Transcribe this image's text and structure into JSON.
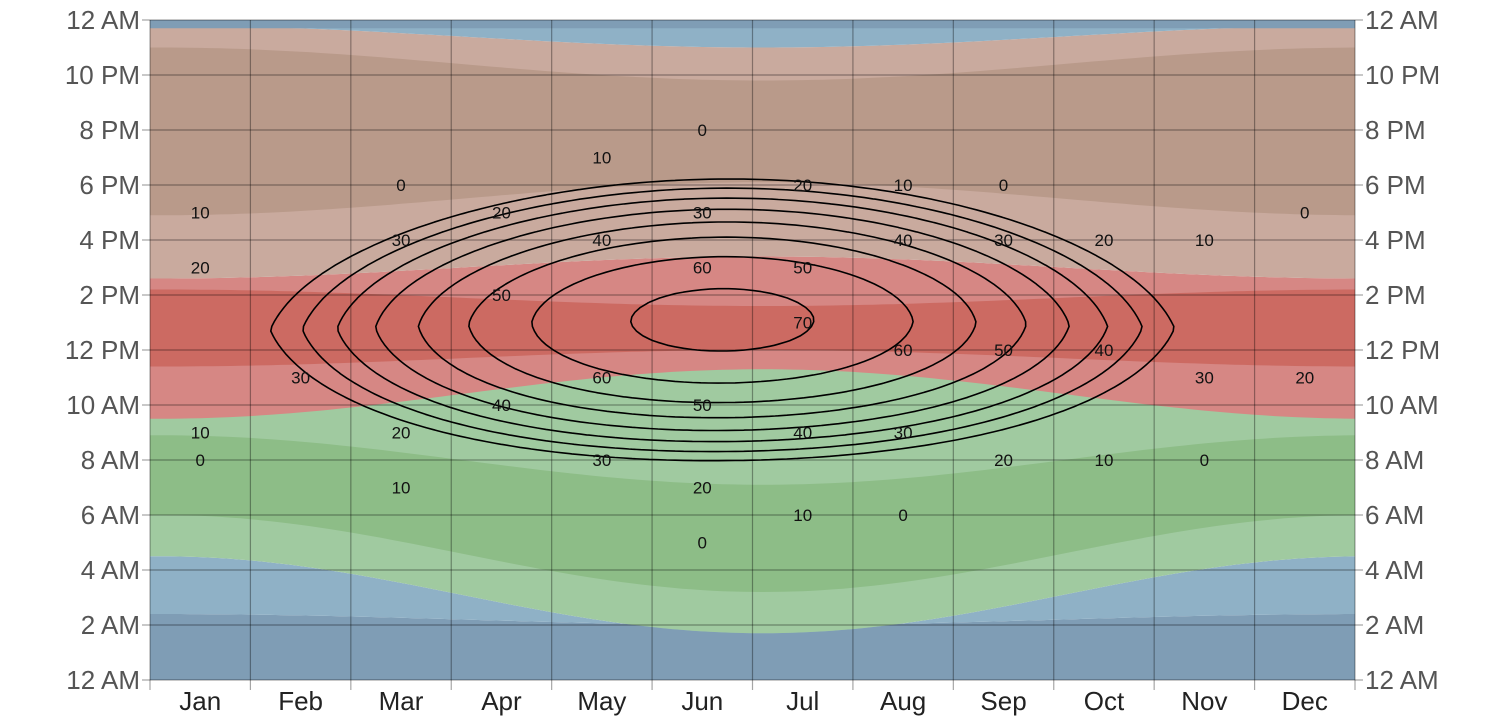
{
  "chart_data": {
    "type": "heatmap",
    "title": "",
    "xlabel": "",
    "ylabel": "",
    "categories": [
      "Jan",
      "Feb",
      "Mar",
      "Apr",
      "May",
      "Jun",
      "Jul",
      "Aug",
      "Sep",
      "Oct",
      "Nov",
      "Dec"
    ],
    "y_ticks": [
      "12 AM",
      "2 AM",
      "4 AM",
      "6 AM",
      "8 AM",
      "10 AM",
      "12 PM",
      "2 PM",
      "4 PM",
      "6 PM",
      "8 PM",
      "10 PM",
      "12 AM"
    ],
    "y_range_hours": [
      0,
      24
    ],
    "grid": true,
    "y_axis_on_both_sides": true,
    "bands": [
      {
        "color": "#7f9db5",
        "role": "night"
      },
      {
        "color": "#8fb1c6",
        "role": "twilight"
      },
      {
        "color": "#8dbd87",
        "role": "morning"
      },
      {
        "color": "#a0caa0",
        "role": "morning-edge"
      },
      {
        "color": "#cc6a62",
        "role": "midday"
      },
      {
        "color": "#d68784",
        "role": "midday-edge"
      },
      {
        "color": "#b99a8a",
        "role": "evening"
      },
      {
        "color": "#c9aa9e",
        "role": "evening-edge"
      }
    ],
    "contours": {
      "levels": [
        0,
        10,
        20,
        30,
        40,
        50,
        60,
        70
      ],
      "peak_value": 73,
      "peak_month": "Jun",
      "peak_hour": 13.0,
      "label_values": [
        {
          "value": 0,
          "positions": [
            [
              "Mar",
              "6 PM"
            ],
            [
              "Jun",
              "8 PM"
            ],
            [
              "Sep",
              "6 PM"
            ],
            [
              "Dec",
              "5 PM"
            ],
            [
              "Jan",
              "8 AM"
            ],
            [
              "Jun",
              "5 AM"
            ],
            [
              "Aug",
              "6 AM"
            ],
            [
              "Nov",
              "8 AM"
            ]
          ]
        },
        {
          "value": 10,
          "positions": [
            [
              "Jan",
              "5 PM"
            ],
            [
              "May",
              "7 PM"
            ],
            [
              "Aug",
              "6 PM"
            ],
            [
              "Nov",
              "4 PM"
            ],
            [
              "Jan",
              "9 AM"
            ],
            [
              "Mar",
              "7 AM"
            ],
            [
              "Jul",
              "6 AM"
            ],
            [
              "Oct",
              "8 AM"
            ]
          ]
        },
        {
          "value": 20,
          "positions": [
            [
              "Jan",
              "3 PM"
            ],
            [
              "Apr",
              "5 PM"
            ],
            [
              "Jul",
              "6 PM"
            ],
            [
              "Oct",
              "4 PM"
            ],
            [
              "Mar",
              "9 AM"
            ],
            [
              "Jun",
              "7 AM"
            ],
            [
              "Sep",
              "8 AM"
            ],
            [
              "Dec",
              "11 AM"
            ]
          ]
        },
        {
          "value": 30,
          "positions": [
            [
              "Mar",
              "4 PM"
            ],
            [
              "Jun",
              "5 PM"
            ],
            [
              "Sep",
              "4 PM"
            ],
            [
              "Nov",
              "11 AM"
            ],
            [
              "Feb",
              "11 AM"
            ],
            [
              "May",
              "8 AM"
            ],
            [
              "Aug",
              "9 AM"
            ]
          ]
        },
        {
          "value": 40,
          "positions": [
            [
              "May",
              "4 PM"
            ],
            [
              "Aug",
              "4 PM"
            ],
            [
              "Oct",
              "12 PM"
            ],
            [
              "Apr",
              "10 AM"
            ],
            [
              "Jul",
              "9 AM"
            ]
          ]
        },
        {
          "value": 50,
          "positions": [
            [
              "Apr",
              "2 PM"
            ],
            [
              "Jul",
              "3 PM"
            ],
            [
              "Sep",
              "12 PM"
            ],
            [
              "Jun",
              "10 AM"
            ]
          ]
        },
        {
          "value": 60,
          "positions": [
            [
              "Jun",
              "3 PM"
            ],
            [
              "Aug",
              "12 PM"
            ],
            [
              "May",
              "11 AM"
            ]
          ]
        },
        {
          "value": 70,
          "positions": [
            [
              "Jul",
              "1 PM"
            ]
          ]
        }
      ]
    }
  }
}
